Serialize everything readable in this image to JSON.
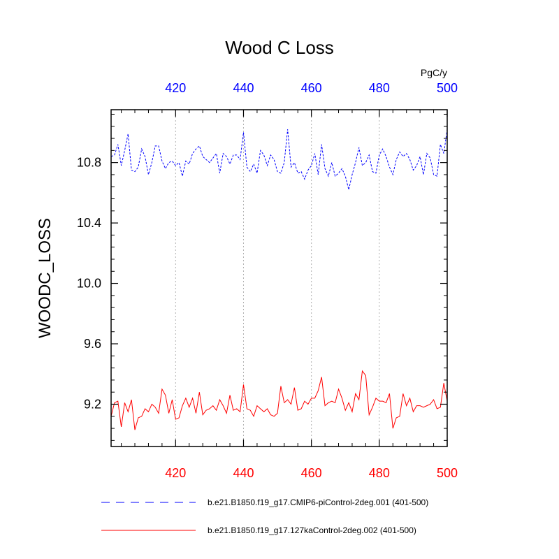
{
  "chart_data": {
    "type": "line",
    "title": "Wood C Loss",
    "units": "PgC/y",
    "ylabel": "WOODC_LOSS",
    "xlim": [
      401,
      500
    ],
    "ylim": [
      8.92,
      11.15
    ],
    "x_ticks": [
      420,
      440,
      460,
      480,
      500
    ],
    "x_tick_labels": [
      "420",
      "440",
      "460",
      "480",
      "500"
    ],
    "y_ticks": [
      9.2,
      9.6,
      10.0,
      10.4,
      10.8
    ],
    "y_tick_labels": [
      "9.2",
      "9.6",
      "10.0",
      "10.4",
      "10.8"
    ],
    "top_axis_color": "#0000ff",
    "bottom_axis_color": "#ff0000",
    "x": [
      401,
      402,
      403,
      404,
      405,
      406,
      407,
      408,
      409,
      410,
      411,
      412,
      413,
      414,
      415,
      416,
      417,
      418,
      419,
      420,
      421,
      422,
      423,
      424,
      425,
      426,
      427,
      428,
      429,
      430,
      431,
      432,
      433,
      434,
      435,
      436,
      437,
      438,
      439,
      440,
      441,
      442,
      443,
      444,
      445,
      446,
      447,
      448,
      449,
      450,
      451,
      452,
      453,
      454,
      455,
      456,
      457,
      458,
      459,
      460,
      461,
      462,
      463,
      464,
      465,
      466,
      467,
      468,
      469,
      470,
      471,
      472,
      473,
      474,
      475,
      476,
      477,
      478,
      479,
      480,
      481,
      482,
      483,
      484,
      485,
      486,
      487,
      488,
      489,
      490,
      491,
      492,
      493,
      494,
      495,
      496,
      497,
      498,
      499,
      500
    ],
    "series": [
      {
        "name": "b.e21.B1850.f19_g17.CMIP6-piControl-2deg.001 (401-500)",
        "color": "#0000ff",
        "dash": "dashed",
        "values": [
          10.84,
          10.85,
          10.92,
          10.78,
          10.88,
          10.99,
          10.75,
          10.74,
          10.77,
          10.89,
          10.84,
          10.72,
          10.8,
          10.91,
          10.91,
          10.81,
          10.76,
          10.8,
          10.81,
          10.78,
          10.8,
          10.71,
          10.81,
          10.79,
          10.86,
          10.89,
          10.91,
          10.84,
          10.82,
          10.8,
          10.83,
          10.86,
          10.73,
          10.86,
          10.84,
          10.79,
          10.85,
          10.85,
          10.82,
          11.0,
          10.77,
          10.74,
          10.79,
          10.73,
          10.88,
          10.85,
          10.78,
          10.85,
          10.82,
          10.74,
          10.73,
          10.8,
          11.02,
          10.77,
          10.8,
          10.73,
          10.74,
          10.69,
          10.75,
          10.78,
          10.86,
          10.72,
          10.92,
          10.76,
          10.71,
          10.8,
          10.71,
          10.73,
          10.76,
          10.71,
          10.62,
          10.72,
          10.8,
          10.9,
          10.78,
          10.8,
          10.85,
          10.74,
          10.73,
          10.85,
          10.89,
          10.84,
          10.77,
          10.72,
          10.82,
          10.87,
          10.84,
          10.86,
          10.82,
          10.75,
          10.78,
          10.84,
          10.72,
          10.86,
          10.83,
          10.72,
          10.71,
          10.92,
          10.86,
          11.02
        ]
      },
      {
        "name": "b.e21.B1850.f19_g17.127kaControl-2deg.002 (401-500)",
        "color": "#ff0000",
        "dash": "solid",
        "values": [
          9.12,
          9.21,
          9.22,
          9.05,
          9.21,
          9.15,
          9.23,
          9.03,
          9.11,
          9.12,
          9.17,
          9.15,
          9.2,
          9.18,
          9.14,
          9.3,
          9.26,
          9.14,
          9.23,
          9.1,
          9.11,
          9.19,
          9.24,
          9.18,
          9.24,
          9.14,
          9.28,
          9.13,
          9.16,
          9.17,
          9.19,
          9.16,
          9.23,
          9.19,
          9.14,
          9.26,
          9.16,
          9.17,
          9.15,
          9.33,
          9.17,
          9.16,
          9.12,
          9.19,
          9.17,
          9.15,
          9.17,
          9.13,
          9.12,
          9.14,
          9.32,
          9.21,
          9.23,
          9.2,
          9.31,
          9.16,
          9.17,
          9.22,
          9.2,
          9.24,
          9.24,
          9.29,
          9.38,
          9.19,
          9.21,
          9.22,
          9.21,
          9.3,
          9.24,
          9.16,
          9.21,
          9.15,
          9.27,
          9.23,
          9.42,
          9.39,
          9.13,
          9.18,
          9.24,
          9.22,
          9.22,
          9.21,
          9.27,
          9.04,
          9.11,
          9.12,
          9.27,
          9.19,
          9.24,
          9.15,
          9.19,
          9.19,
          9.18,
          9.19,
          9.2,
          9.23,
          9.17,
          9.18,
          9.34,
          9.22
        ]
      }
    ],
    "legend_position": "bottom"
  }
}
